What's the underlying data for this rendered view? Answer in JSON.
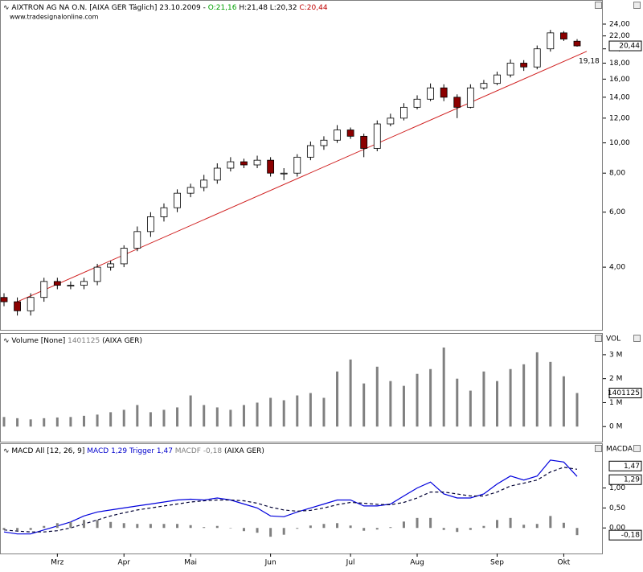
{
  "chart_data": [
    {
      "type": "candlestick",
      "title_parts": [
        {
          "text": "AIXTRON AG NA O.N. [AIXA GER  Täglich] 23.10.2009 - ",
          "color": "#000000"
        },
        {
          "text": "O:21,16",
          "color": "#00a000"
        },
        {
          "text": " H:21,48 L:20,32 ",
          "color": "#000000"
        },
        {
          "text": "C:20,44",
          "color": "#c00000"
        }
      ],
      "subtitle": "www.tradesignalonline.com",
      "log_scale": true,
      "ylim": [
        2.52,
        28.5
      ],
      "yticks": [
        {
          "value": 4,
          "label": "4,00"
        },
        {
          "value": 6,
          "label": "6,00"
        },
        {
          "value": 8,
          "label": "8,00"
        },
        {
          "value": 10,
          "label": "10,00"
        },
        {
          "value": 12,
          "label": "12,00"
        },
        {
          "value": 14,
          "label": "14,00"
        },
        {
          "value": 16,
          "label": "16,00"
        },
        {
          "value": 18,
          "label": "18,00"
        },
        {
          "value": 20,
          "label": "20,00"
        },
        {
          "value": 22,
          "label": "22,00"
        },
        {
          "value": 24,
          "label": "24,00"
        }
      ],
      "up_color": "#ffffff",
      "down_color": "#8b0000",
      "open": [
        3.2,
        3.1,
        2.9,
        3.2,
        3.6,
        3.5,
        3.5,
        3.6,
        4.0,
        4.1,
        4.6,
        5.2,
        5.8,
        6.2,
        6.9,
        7.2,
        7.6,
        8.3,
        8.7,
        8.5,
        8.8,
        8.0,
        8.0,
        9.0,
        9.8,
        10.2,
        11.0,
        10.5,
        9.6,
        11.5,
        12.0,
        13.0,
        13.8,
        15.0,
        14.0,
        13.0,
        15.0,
        15.5,
        16.5,
        18.0,
        17.5,
        20.0,
        22.5,
        21.16
      ],
      "high": [
        3.3,
        3.2,
        3.3,
        3.7,
        3.7,
        3.6,
        3.7,
        4.1,
        4.2,
        4.7,
        5.4,
        6.0,
        6.4,
        7.1,
        7.4,
        7.9,
        8.6,
        9.0,
        8.9,
        9.1,
        9.0,
        8.3,
        9.2,
        10.1,
        10.5,
        11.4,
        11.2,
        10.7,
        11.8,
        12.4,
        13.4,
        14.2,
        15.5,
        15.4,
        14.3,
        15.4,
        15.9,
        16.9,
        18.5,
        18.4,
        20.5,
        23.0,
        22.8,
        21.48
      ],
      "low": [
        3.0,
        2.8,
        2.8,
        3.1,
        3.4,
        3.4,
        3.4,
        3.5,
        3.9,
        4.0,
        4.5,
        5.0,
        5.6,
        6.0,
        6.7,
        7.0,
        7.4,
        8.1,
        8.3,
        8.3,
        7.8,
        7.6,
        7.8,
        8.8,
        9.5,
        10.0,
        10.3,
        9.0,
        9.4,
        11.3,
        11.8,
        12.8,
        13.6,
        13.6,
        12.0,
        12.9,
        14.8,
        15.3,
        16.2,
        17.0,
        17.2,
        19.6,
        21.2,
        20.32
      ],
      "close": [
        3.1,
        2.9,
        3.2,
        3.6,
        3.5,
        3.5,
        3.6,
        4.0,
        4.1,
        4.6,
        5.2,
        5.8,
        6.2,
        6.9,
        7.2,
        7.6,
        8.3,
        8.7,
        8.5,
        8.8,
        8.0,
        8.0,
        9.0,
        9.8,
        10.2,
        11.0,
        10.5,
        9.6,
        11.5,
        12.0,
        13.0,
        13.8,
        15.0,
        14.0,
        13.0,
        15.0,
        15.5,
        16.5,
        18.0,
        17.5,
        20.0,
        22.5,
        21.5,
        20.44
      ],
      "close_label": "20,44",
      "trendline": {
        "start": 3.1,
        "end": 19.18,
        "end_label": "19,18",
        "color": "#d02020"
      }
    },
    {
      "type": "bar",
      "title_parts": [
        {
          "text": "Volume [None] ",
          "color": "#000000"
        },
        {
          "text": "1401125",
          "color": "#808080"
        },
        {
          "text": " (AIXA GER)",
          "color": "#000000"
        }
      ],
      "axis_label": "VOL",
      "ylim": [
        -630000,
        3870000
      ],
      "yticks": [
        {
          "value": 0,
          "label": "0 M"
        },
        {
          "value": 1000000,
          "label": "1 M"
        },
        {
          "value": 2000000,
          "label": "2 M"
        },
        {
          "value": 3000000,
          "label": "3 M"
        }
      ],
      "color": "#808080",
      "values": [
        400000,
        350000,
        300000,
        350000,
        380000,
        400000,
        450000,
        500000,
        600000,
        700000,
        900000,
        600000,
        700000,
        800000,
        1300000,
        900000,
        800000,
        700000,
        900000,
        1000000,
        1200000,
        1100000,
        1300000,
        1400000,
        1200000,
        2300000,
        2800000,
        1800000,
        2500000,
        1900000,
        1700000,
        2200000,
        2400000,
        3300000,
        2000000,
        1500000,
        2300000,
        1900000,
        2400000,
        2600000,
        3100000,
        2700000,
        2100000,
        1401125
      ],
      "last_label": "1401125"
    },
    {
      "type": "line",
      "title_parts": [
        {
          "text": "MACD All [12, 26, 9] ",
          "color": "#000000"
        },
        {
          "text": "MACD 1,29 ",
          "color": "#0000cc"
        },
        {
          "text": "Trigger 1,47 ",
          "color": "#0000cc"
        },
        {
          "text": "MACDF -0,18 ",
          "color": "#808080"
        },
        {
          "text": "(AIXA GER)",
          "color": "#000000"
        }
      ],
      "axis_label": "MACDA",
      "ylim": [
        -0.64,
        2.1
      ],
      "yticks": [
        {
          "value": 0,
          "label": "0,00"
        },
        {
          "value": 0.5,
          "label": "0,50"
        },
        {
          "value": 1,
          "label": "1,00"
        }
      ],
      "categories": [
        null,
        null,
        null,
        null,
        "Mrz",
        null,
        null,
        null,
        null,
        "Apr",
        null,
        null,
        null,
        null,
        "Mai",
        null,
        null,
        null,
        null,
        null,
        "Jun",
        null,
        null,
        null,
        null,
        null,
        "Jul",
        null,
        null,
        null,
        null,
        "Aug",
        null,
        null,
        null,
        null,
        null,
        "Sep",
        null,
        null,
        null,
        null,
        "Okt",
        null
      ],
      "series": [
        {
          "name": "MACD",
          "color": "#0000dd",
          "style": "solid",
          "last_label": "1,29",
          "values": [
            -0.1,
            -0.15,
            -0.15,
            -0.05,
            0.05,
            0.15,
            0.3,
            0.4,
            0.45,
            0.5,
            0.55,
            0.6,
            0.65,
            0.7,
            0.72,
            0.7,
            0.75,
            0.7,
            0.6,
            0.5,
            0.3,
            0.28,
            0.4,
            0.5,
            0.6,
            0.7,
            0.7,
            0.55,
            0.55,
            0.6,
            0.8,
            1.0,
            1.15,
            0.85,
            0.75,
            0.75,
            0.85,
            1.1,
            1.3,
            1.2,
            1.3,
            1.7,
            1.65,
            1.29
          ]
        },
        {
          "name": "Trigger",
          "color": "#000033",
          "style": "dashed",
          "last_label": "1,47",
          "values": [
            -0.05,
            -0.08,
            -0.1,
            -0.1,
            -0.07,
            0.0,
            0.1,
            0.2,
            0.3,
            0.38,
            0.45,
            0.5,
            0.55,
            0.6,
            0.65,
            0.68,
            0.7,
            0.7,
            0.68,
            0.62,
            0.52,
            0.45,
            0.42,
            0.44,
            0.5,
            0.58,
            0.64,
            0.62,
            0.59,
            0.58,
            0.64,
            0.75,
            0.9,
            0.9,
            0.85,
            0.8,
            0.8,
            0.9,
            1.05,
            1.12,
            1.2,
            1.4,
            1.52,
            1.47
          ]
        },
        {
          "name": "MACDF",
          "color": "#808080",
          "style": "histogram",
          "last_label": "-0,18",
          "values": [
            -0.05,
            -0.07,
            -0.05,
            0.05,
            0.12,
            0.15,
            0.2,
            0.2,
            0.15,
            0.12,
            0.1,
            0.1,
            0.1,
            0.1,
            0.07,
            0.02,
            0.05,
            0.0,
            -0.08,
            -0.12,
            -0.22,
            -0.17,
            -0.02,
            0.06,
            0.1,
            0.12,
            0.06,
            -0.07,
            -0.04,
            0.02,
            0.16,
            0.25,
            0.25,
            -0.05,
            -0.1,
            -0.05,
            0.05,
            0.2,
            0.25,
            0.08,
            0.1,
            0.3,
            0.13,
            -0.18
          ]
        }
      ]
    }
  ]
}
